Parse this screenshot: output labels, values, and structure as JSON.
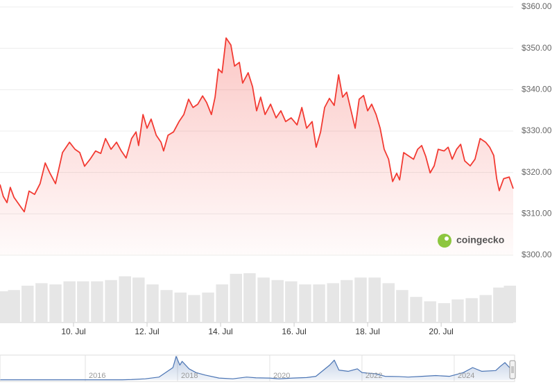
{
  "watermark": "coingecko",
  "chart_data": [
    {
      "type": "line",
      "color": "#f23a32",
      "grid": true,
      "xlim": [
        8,
        21.96
      ],
      "xticks": [
        {
          "value": 10,
          "label": "10. Jul"
        },
        {
          "value": 12,
          "label": "12. Jul"
        },
        {
          "value": 14,
          "label": "14. Jul"
        },
        {
          "value": 16,
          "label": "16. Jul"
        },
        {
          "value": 18,
          "label": "18. Jul"
        },
        {
          "value": 20,
          "label": "20. Jul"
        }
      ],
      "ylim": [
        300,
        360
      ],
      "yticks": [
        {
          "value": 300,
          "label": "$300.00"
        },
        {
          "value": 310,
          "label": "$310.00"
        },
        {
          "value": 320,
          "label": "$320.00"
        },
        {
          "value": 330,
          "label": "$330.00"
        },
        {
          "value": 340,
          "label": "$340.00"
        },
        {
          "value": 350,
          "label": "$350.00"
        },
        {
          "value": 360,
          "label": "$360.00"
        }
      ],
      "x": [
        8,
        8.09,
        8.19,
        8.28,
        8.38,
        8.57,
        8.66,
        8.79,
        8.94,
        9.09,
        9.23,
        9.36,
        9.51,
        9.7,
        9.89,
        10.04,
        10.17,
        10.3,
        10.45,
        10.6,
        10.74,
        10.87,
        11.02,
        11.17,
        11.3,
        11.43,
        11.58,
        11.7,
        11.77,
        11.89,
        12.0,
        12.11,
        12.25,
        12.38,
        12.45,
        12.57,
        12.72,
        12.87,
        13.0,
        13.13,
        13.25,
        13.38,
        13.51,
        13.62,
        13.75,
        13.85,
        13.94,
        14.04,
        14.15,
        14.28,
        14.38,
        14.51,
        14.6,
        14.75,
        14.87,
        14.98,
        15.09,
        15.21,
        15.36,
        15.51,
        15.64,
        15.77,
        15.92,
        16.08,
        16.21,
        16.34,
        16.49,
        16.6,
        16.72,
        16.83,
        16.96,
        17.09,
        17.21,
        17.32,
        17.43,
        17.55,
        17.66,
        17.77,
        17.89,
        18.0,
        18.11,
        18.23,
        18.34,
        18.45,
        18.57,
        18.68,
        18.79,
        18.87,
        18.98,
        19.13,
        19.25,
        19.36,
        19.47,
        19.58,
        19.7,
        19.81,
        19.92,
        20.08,
        20.19,
        20.3,
        20.42,
        20.53,
        20.64,
        20.79,
        20.92,
        21.06,
        21.21,
        21.32,
        21.43,
        21.51,
        21.58,
        21.7,
        21.85,
        21.96
      ],
      "values": [
        317.1,
        314.2,
        312.7,
        316.4,
        314,
        311.6,
        310.5,
        315.5,
        314.7,
        317.3,
        322.3,
        319.8,
        317.3,
        324.8,
        327.3,
        325.6,
        324.8,
        321.5,
        323.2,
        325.2,
        324.6,
        328.2,
        325.6,
        327.3,
        325.2,
        323.5,
        328.2,
        329.8,
        326.5,
        334,
        330.7,
        332.9,
        329,
        327.3,
        325.2,
        329,
        329.8,
        332.3,
        334,
        337.7,
        335.7,
        336.5,
        338.5,
        336.9,
        334,
        338.2,
        345,
        344.1,
        352.5,
        350.8,
        345.7,
        346.6,
        341.6,
        344.1,
        340.7,
        334.9,
        338.2,
        334,
        336.5,
        333.2,
        334.9,
        332.3,
        333.2,
        331.5,
        335.7,
        330.7,
        332.3,
        326.1,
        329.8,
        335.7,
        337.9,
        336.2,
        343.6,
        338.2,
        339.4,
        334.9,
        330.7,
        337.7,
        338.6,
        334.9,
        336.5,
        334,
        330.7,
        325.6,
        323.2,
        317.8,
        319.8,
        318.2,
        324.8,
        323.9,
        323.2,
        325.6,
        326.5,
        323.9,
        319.9,
        321.6,
        325.6,
        325.2,
        326.1,
        323.2,
        325.6,
        326.8,
        322.8,
        321.6,
        323.2,
        328.2,
        327.3,
        326.1,
        324.1,
        318.5,
        315.6,
        318.5,
        318.9,
        316.1
      ]
    },
    {
      "type": "bar",
      "color": "#e6e6e6",
      "xlim": [
        8,
        21.96
      ],
      "ylim": [
        0,
        100
      ],
      "x": [
        8,
        8.38,
        8.75,
        9.13,
        9.51,
        9.89,
        10.26,
        10.64,
        11.02,
        11.4,
        11.77,
        12.15,
        12.53,
        12.91,
        13.28,
        13.66,
        14.04,
        14.42,
        14.79,
        15.17,
        15.55,
        15.92,
        16.3,
        16.68,
        17.06,
        17.43,
        17.81,
        18.19,
        18.57,
        18.94,
        19.32,
        19.7,
        20.08,
        20.45,
        20.83,
        21.21,
        21.58,
        21.87
      ],
      "values": [
        50,
        52,
        59,
        63,
        61,
        66,
        66,
        66,
        68,
        74,
        72,
        61,
        52,
        48,
        44,
        48,
        61,
        78,
        79,
        72,
        68,
        66,
        61,
        61,
        63,
        68,
        72,
        72,
        63,
        52,
        41,
        34,
        31,
        37,
        39,
        44,
        56,
        59
      ]
    },
    {
      "type": "line",
      "color": "#4a74b4",
      "xlim": [
        2014.15,
        2025.28
      ],
      "ylim": [
        0,
        100
      ],
      "xticks": [
        2016,
        2018,
        2020,
        2022,
        2024
      ],
      "x": [
        2014.15,
        2016.8,
        2017.0,
        2017.3,
        2017.6,
        2017.9,
        2017.97,
        2018.05,
        2018.1,
        2018.25,
        2018.4,
        2018.6,
        2018.9,
        2019.2,
        2019.5,
        2019.7,
        2020.0,
        2020.2,
        2020.5,
        2020.8,
        2021.0,
        2021.3,
        2021.4,
        2021.5,
        2021.7,
        2021.9,
        2022.0,
        2022.3,
        2022.5,
        2022.8,
        2023.0,
        2023.3,
        2023.6,
        2023.9,
        2024.0,
        2024.2,
        2024.4,
        2024.6,
        2024.9,
        2025.0,
        2025.1,
        2025.2,
        2025.28
      ],
      "values": [
        1,
        1,
        2,
        5,
        12,
        50,
        95,
        60,
        75,
        45,
        30,
        20,
        8,
        5,
        12,
        9,
        8,
        5,
        8,
        10,
        15,
        60,
        80,
        40,
        35,
        45,
        30,
        25,
        15,
        14,
        12,
        15,
        18,
        15,
        20,
        30,
        50,
        35,
        38,
        55,
        70,
        50,
        48
      ]
    }
  ]
}
